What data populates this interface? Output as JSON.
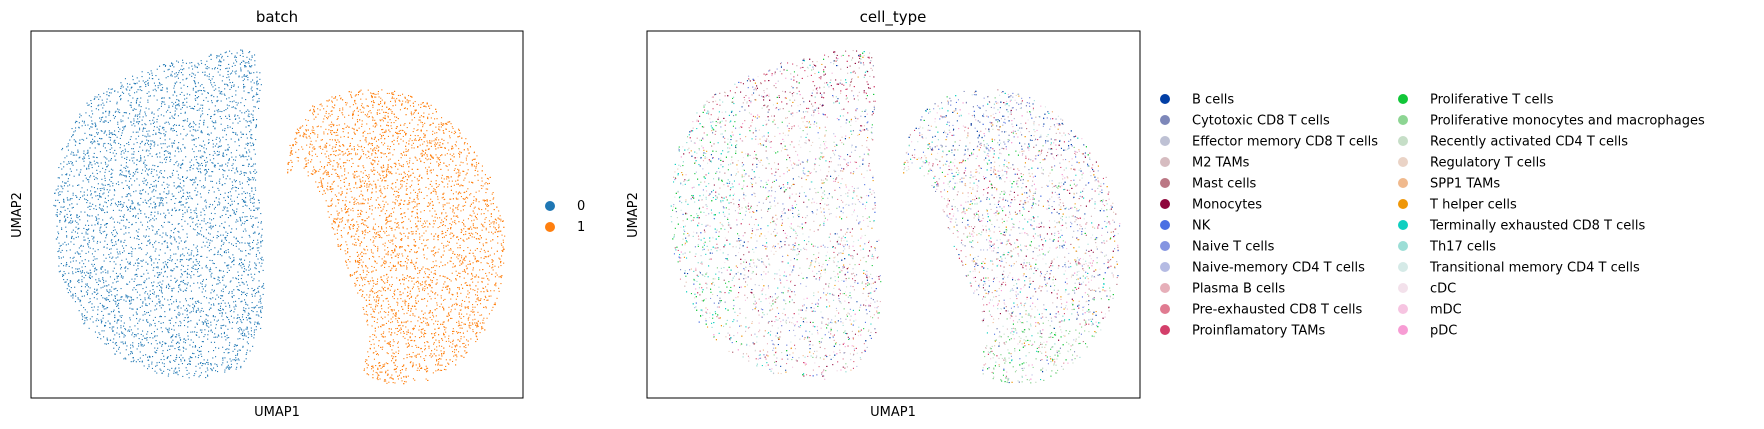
{
  "chart_data": [
    {
      "type": "scatter",
      "title": "batch",
      "xlabel": "UMAP1",
      "ylabel": "UMAP2",
      "grid": false,
      "legend_placement": "right",
      "series": [
        {
          "name": "0",
          "color": "#1f77b4",
          "region": "left"
        },
        {
          "name": "1",
          "color": "#ff7f0e",
          "region": "right"
        }
      ]
    },
    {
      "type": "scatter",
      "title": "cell_type",
      "xlabel": "UMAP1",
      "ylabel": "UMAP2",
      "grid": false,
      "legend_placement": "right",
      "series": [
        {
          "name": "B cells",
          "color": "#023fa5"
        },
        {
          "name": "Cytotoxic CD8 T cells",
          "color": "#7d87b9"
        },
        {
          "name": "Effector memory CD8 T cells",
          "color": "#bec1d4"
        },
        {
          "name": "M2 TAMs",
          "color": "#d6bcc0"
        },
        {
          "name": "Mast cells",
          "color": "#bb7784"
        },
        {
          "name": "Monocytes",
          "color": "#8e063b"
        },
        {
          "name": "NK",
          "color": "#4a6fe3"
        },
        {
          "name": "Naive T cells",
          "color": "#8595e1"
        },
        {
          "name": "Naive-memory CD4 T cells",
          "color": "#b5bbe3"
        },
        {
          "name": "Plasma B cells",
          "color": "#e6afb9"
        },
        {
          "name": "Pre-exhausted CD8 T cells",
          "color": "#e07b91"
        },
        {
          "name": "Proinflamatory TAMs",
          "color": "#d33f6a"
        },
        {
          "name": "Proliferative T cells",
          "color": "#11c638"
        },
        {
          "name": "Proliferative monocytes and macrophages",
          "color": "#8dd593"
        },
        {
          "name": "Recently activated CD4 T cells",
          "color": "#c6dec7"
        },
        {
          "name": "Regulatory T cells",
          "color": "#ead3c6"
        },
        {
          "name": "SPP1 TAMs",
          "color": "#f0b98d"
        },
        {
          "name": "T helper cells",
          "color": "#ef9708"
        },
        {
          "name": "Terminally exhausted CD8 T cells",
          "color": "#0fcfc0"
        },
        {
          "name": "Th17 cells",
          "color": "#9cded6"
        },
        {
          "name": "Transitional memory CD4 T cells",
          "color": "#d5eae7"
        },
        {
          "name": "cDC",
          "color": "#f3e1eb"
        },
        {
          "name": "mDC",
          "color": "#f6c4e1"
        },
        {
          "name": "pDC",
          "color": "#f79cd4"
        }
      ]
    }
  ]
}
